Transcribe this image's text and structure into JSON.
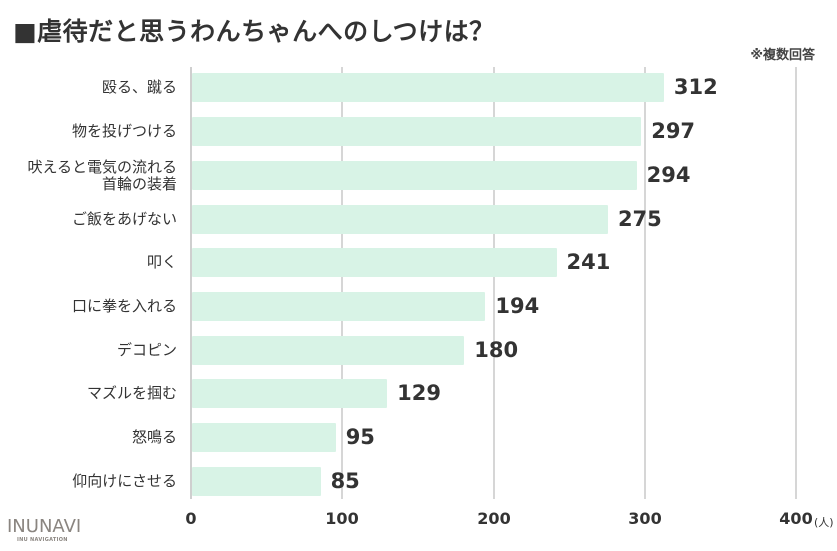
{
  "header": {
    "title": "■虐待だと思うわんちゃんへのしつけは？",
    "note": "※複数回答"
  },
  "axis": {
    "ticks": [
      "0",
      "100",
      "200",
      "300",
      "400"
    ],
    "unit": "(人)"
  },
  "logo": {
    "main": "INUNAVI",
    "sub": "INU NAVIGATION"
  },
  "colors": {
    "bar": "#d8f3e6",
    "text": "#333333",
    "gridline": "#d6d6d6"
  },
  "chart_data": {
    "type": "bar",
    "orientation": "horizontal",
    "title": "■虐待だと思うわんちゃんへのしつけは？",
    "subtitle": "※複数回答",
    "categories": [
      "殴る、蹴る",
      "物を投げつける",
      "吠えると電気の流れる首輪の装着",
      "ご飯をあげない",
      "叩く",
      "口に拳を入れる",
      "デコピン",
      "マズルを掴む",
      "怒鳴る",
      "仰向けにさせる"
    ],
    "category_lines": [
      [
        "殴る、蹴る"
      ],
      [
        "物を投げつける"
      ],
      [
        "吠えると電気の流れる",
        "首輪の装着"
      ],
      [
        "ご飯をあげない"
      ],
      [
        "叩く"
      ],
      [
        "口に拳を入れる"
      ],
      [
        "デコピン"
      ],
      [
        "マズルを掴む"
      ],
      [
        "怒鳴る"
      ],
      [
        "仰向けにさせる"
      ]
    ],
    "values": [
      312,
      297,
      294,
      275,
      241,
      194,
      180,
      129,
      95,
      85
    ],
    "value_labels": [
      "312",
      "297",
      "294",
      "275",
      "241",
      "194",
      "180",
      "129",
      "95",
      "85"
    ],
    "xlabel": "(人)",
    "ylabel": "",
    "xlim": [
      0,
      400
    ],
    "xticks": [
      0,
      100,
      200,
      300,
      400
    ],
    "grid": true,
    "legend": null
  }
}
